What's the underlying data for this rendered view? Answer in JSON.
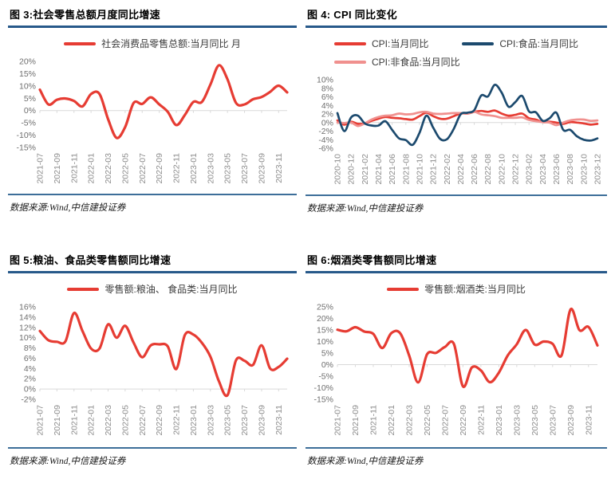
{
  "colors": {
    "accent_red": "#e63c33",
    "navy_blue": "#1c4a6e",
    "salmon_pink": "#f0908e",
    "title_rule": "#27598a",
    "footer_rule": "#3d6e99",
    "axis_text": "#8c8c8c",
    "ytick_text": "#6e6e6e",
    "axis_line": "#d9d9d9"
  },
  "panels": [
    {
      "title": "图 3:社会零售总额月度同比增速",
      "source": "数据来源:Wind,中信建投证券"
    },
    {
      "title": "图 4: CPI 同比变化",
      "source": "数据来源:Wind,中信建投证券"
    },
    {
      "title": "图 5:粮油、食品类零售额同比增速",
      "source": "数据来源:Wind,中信建投证券"
    },
    {
      "title": "图 6:烟酒类零售额同比增速",
      "source": "数据来源:Wind,中信建投证券"
    }
  ],
  "chart_data": [
    {
      "type": "line",
      "title": "图 3:社会零售总额月度同比增速",
      "unit": "%",
      "ylim": [
        -15,
        20
      ],
      "ystep": 5,
      "grid": "zero-axis-only",
      "legend_position": "top",
      "tick_every": 2,
      "x": [
        "2021-07",
        "2021-08",
        "2021-09",
        "2021-10",
        "2021-11",
        "2021-12",
        "2022-01",
        "2022-02",
        "2022-03",
        "2022-04",
        "2022-05",
        "2022-06",
        "2022-07",
        "2022-08",
        "2022-09",
        "2022-10",
        "2022-11",
        "2022-12",
        "2023-01",
        "2023-02",
        "2023-03",
        "2023-04",
        "2023-05",
        "2023-06",
        "2023-07",
        "2023-08",
        "2023-09",
        "2023-10",
        "2023-11",
        "2023-12"
      ],
      "legend_rows": [
        [
          0
        ]
      ],
      "series": [
        {
          "label": "社会消费品零售总额:当月同比 月",
          "color": "#e63c33",
          "width": 3.2,
          "values": [
            8.5,
            2.5,
            4.4,
            4.9,
            3.9,
            1.7,
            6.7,
            6.7,
            -3.5,
            -11.1,
            -6.7,
            3.1,
            2.7,
            5.4,
            2.5,
            -0.5,
            -5.9,
            -1.8,
            3.5,
            3.5,
            10.6,
            18.4,
            12.7,
            3.1,
            2.5,
            4.6,
            5.5,
            7.6,
            10.1,
            7.4
          ]
        }
      ]
    },
    {
      "type": "line",
      "title": "图 4: CPI 同比变化",
      "unit": "%",
      "ylim": [
        -6,
        10
      ],
      "ystep": 2,
      "grid": "zero-axis-only",
      "legend_position": "top",
      "tick_every": 2,
      "draw_order": [
        0,
        2,
        1
      ],
      "x": [
        "2020-10",
        "2020-11",
        "2020-12",
        "2021-01",
        "2021-02",
        "2021-03",
        "2021-04",
        "2021-05",
        "2021-06",
        "2021-07",
        "2021-08",
        "2021-09",
        "2021-10",
        "2021-11",
        "2021-12",
        "2022-01",
        "2022-02",
        "2022-03",
        "2022-04",
        "2022-05",
        "2022-06",
        "2022-07",
        "2022-08",
        "2022-09",
        "2022-10",
        "2022-11",
        "2022-12",
        "2023-01",
        "2023-02",
        "2023-03",
        "2023-04",
        "2023-05",
        "2023-06",
        "2023-07",
        "2023-08",
        "2023-09",
        "2023-10",
        "2023-11",
        "2023-12"
      ],
      "legend_rows": [
        [
          0,
          1
        ],
        [
          2
        ]
      ],
      "series": [
        {
          "label": "CPI:当月同比",
          "color": "#e63c33",
          "width": 2.7,
          "values": [
            0.5,
            -0.5,
            0.2,
            -0.3,
            -0.2,
            0.4,
            0.9,
            1.3,
            1.1,
            1.0,
            0.8,
            0.7,
            1.5,
            2.3,
            1.5,
            0.9,
            0.9,
            1.5,
            2.1,
            2.1,
            2.5,
            2.7,
            2.5,
            2.8,
            2.1,
            1.6,
            1.8,
            2.1,
            1.0,
            0.7,
            0.1,
            0.2,
            0.0,
            -0.3,
            0.1,
            0.0,
            -0.2,
            -0.5,
            -0.3
          ]
        },
        {
          "label": "CPI:食品:当月同比",
          "color": "#1c4a6e",
          "width": 2.7,
          "values": [
            2.2,
            -2.0,
            1.2,
            1.6,
            -0.2,
            -0.7,
            -0.7,
            0.3,
            -1.7,
            -3.7,
            -4.1,
            -5.2,
            -2.4,
            1.6,
            -1.2,
            -3.8,
            -3.9,
            -1.5,
            1.9,
            2.3,
            2.9,
            6.3,
            6.1,
            8.8,
            7.0,
            3.7,
            4.8,
            6.2,
            2.6,
            2.4,
            0.4,
            1.0,
            2.3,
            -1.7,
            -1.7,
            -3.2,
            -4.0,
            -4.2,
            -3.7
          ]
        },
        {
          "label": "CPI:非食品:当月同比",
          "color": "#f0908e",
          "width": 2.7,
          "values": [
            0.0,
            -0.1,
            0.0,
            -0.8,
            -0.2,
            0.7,
            1.3,
            1.6,
            1.7,
            2.1,
            1.9,
            2.0,
            2.4,
            2.5,
            2.1,
            2.0,
            2.1,
            2.2,
            2.2,
            2.1,
            2.5,
            1.9,
            1.7,
            1.5,
            1.1,
            1.1,
            1.1,
            1.2,
            0.6,
            0.3,
            0.1,
            0.0,
            -0.6,
            0.0,
            0.5,
            0.7,
            0.7,
            0.4,
            0.5
          ]
        }
      ]
    },
    {
      "type": "line",
      "title": "图 5:粮油、食品类零售额同比增速",
      "unit": "%",
      "ylim": [
        -2,
        16
      ],
      "ystep": 2,
      "grid": "zero-axis-only",
      "legend_position": "top",
      "tick_every": 2,
      "x": [
        "2021-07",
        "2021-08",
        "2021-09",
        "2021-10",
        "2021-11",
        "2021-12",
        "2022-01",
        "2022-02",
        "2022-03",
        "2022-04",
        "2022-05",
        "2022-06",
        "2022-07",
        "2022-08",
        "2022-09",
        "2022-10",
        "2022-11",
        "2022-12",
        "2023-01",
        "2023-02",
        "2023-03",
        "2023-04",
        "2023-05",
        "2023-06",
        "2023-07",
        "2023-08",
        "2023-09",
        "2023-10",
        "2023-11",
        "2023-12"
      ],
      "legend_rows": [
        [
          0
        ]
      ],
      "series": [
        {
          "label": "零售额:粮油、 食品类:当月同比",
          "color": "#e63c33",
          "width": 3.2,
          "values": [
            11.3,
            9.5,
            9.2,
            9.3,
            14.8,
            11.3,
            7.9,
            7.9,
            12.6,
            10.0,
            12.3,
            9.0,
            6.2,
            8.5,
            8.7,
            8.3,
            3.9,
            10.5,
            10.6,
            9.0,
            6.3,
            1.5,
            -1.2,
            5.6,
            5.5,
            4.7,
            8.5,
            4.0,
            4.3,
            5.9
          ]
        }
      ]
    },
    {
      "type": "line",
      "title": "图 6:烟酒类零售额同比增速",
      "unit": "%",
      "ylim": [
        -15,
        25
      ],
      "ystep": 5,
      "grid": "zero-axis-only",
      "legend_position": "top",
      "tick_every": 2,
      "x": [
        "2021-07",
        "2021-08",
        "2021-09",
        "2021-10",
        "2021-11",
        "2021-12",
        "2022-01",
        "2022-02",
        "2022-03",
        "2022-04",
        "2022-05",
        "2022-06",
        "2022-07",
        "2022-08",
        "2022-09",
        "2022-10",
        "2022-11",
        "2022-12",
        "2023-01",
        "2023-02",
        "2023-03",
        "2023-04",
        "2023-05",
        "2023-06",
        "2023-07",
        "2023-08",
        "2023-09",
        "2023-10",
        "2023-11",
        "2023-12"
      ],
      "legend_rows": [
        [
          0
        ]
      ],
      "series": [
        {
          "label": "零售额:烟酒类:当月同比",
          "color": "#e63c33",
          "width": 3.2,
          "values": [
            15.1,
            14.4,
            16.2,
            14.3,
            13.3,
            7.2,
            13.6,
            13.6,
            4.0,
            -7.7,
            4.5,
            5.1,
            7.7,
            8.9,
            -9.4,
            -1.2,
            -2.5,
            -7.6,
            -3.5,
            4.0,
            8.8,
            15.0,
            8.7,
            10.0,
            9.0,
            4.0,
            23.9,
            14.9,
            16.3,
            8.3
          ]
        }
      ]
    }
  ]
}
